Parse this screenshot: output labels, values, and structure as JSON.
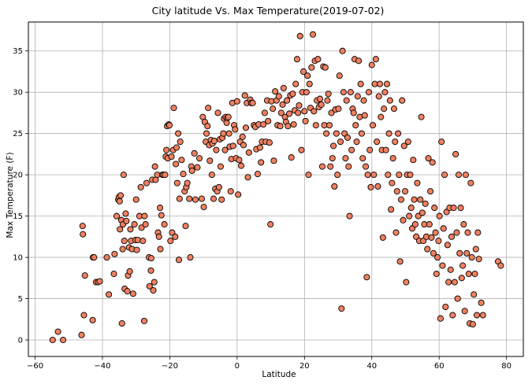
{
  "chart_data": {
    "type": "scatter",
    "title": "City latitude Vs. Max Temperature(2019-07-02)",
    "xlabel": "Latitude",
    "ylabel": "Max Temperature (F)",
    "xlim": [
      -62,
      85
    ],
    "ylim": [
      -2,
      38.5
    ],
    "xticks": [
      -60,
      -40,
      -20,
      0,
      20,
      40,
      60,
      80
    ],
    "yticks": [
      0,
      5,
      10,
      15,
      20,
      25,
      30,
      35
    ],
    "grid": true,
    "marker_face_color": "#f08060",
    "marker_edge_color": "#000000",
    "points": [
      [
        -54.8,
        0.0
      ],
      [
        -53.2,
        1.0
      ],
      [
        -51.7,
        0.0
      ],
      [
        -46.2,
        0.6
      ],
      [
        -45.9,
        13.8
      ],
      [
        -45.8,
        12.8
      ],
      [
        -45.5,
        3.0
      ],
      [
        -45.2,
        7.8
      ],
      [
        -42.9,
        2.4
      ],
      [
        -42.8,
        10.0
      ],
      [
        -42.5,
        10.0
      ],
      [
        -41.9,
        7.0
      ],
      [
        -41.3,
        7.0
      ],
      [
        -40.8,
        7.1
      ],
      [
        -38.7,
        10.0
      ],
      [
        -38.1,
        5.5
      ],
      [
        -36.6,
        8.0
      ],
      [
        -36.4,
        10.4
      ],
      [
        -35.8,
        15.0
      ],
      [
        -35.3,
        17.0
      ],
      [
        -35.1,
        17.3
      ],
      [
        -34.9,
        16.8
      ],
      [
        -34.8,
        13.4
      ],
      [
        -34.6,
        17.5
      ],
      [
        -34.4,
        14.5
      ],
      [
        -34.2,
        2.0
      ],
      [
        -34.0,
        11.0
      ],
      [
        -33.9,
        14.0
      ],
      [
        -33.7,
        20.0
      ],
      [
        -33.5,
        12.0
      ],
      [
        -33.4,
        6.2
      ],
      [
        -33.1,
        15.3
      ],
      [
        -32.9,
        14.4
      ],
      [
        -32.6,
        5.9
      ],
      [
        -32.4,
        7.8
      ],
      [
        -32.1,
        11.2
      ],
      [
        -31.9,
        8.3
      ],
      [
        -31.7,
        13.4
      ],
      [
        -31.5,
        12.0
      ],
      [
        -31.2,
        11.0
      ],
      [
        -30.9,
        5.6
      ],
      [
        -30.5,
        14.0
      ],
      [
        -30.2,
        12.1
      ],
      [
        -30.0,
        17.0
      ],
      [
        -29.8,
        10.9
      ],
      [
        -29.5,
        12.1
      ],
      [
        -29.0,
        15.0
      ],
      [
        -28.6,
        18.5
      ],
      [
        -28.4,
        13.6
      ],
      [
        -28.0,
        12.0
      ],
      [
        -27.6,
        2.3
      ],
      [
        -27.5,
        15.0
      ],
      [
        -27.2,
        14.0
      ],
      [
        -26.9,
        19.0
      ],
      [
        -26.2,
        10.0
      ],
      [
        -26.0,
        6.5
      ],
      [
        -25.6,
        8.4
      ],
      [
        -25.5,
        9.9
      ],
      [
        -25.2,
        19.4
      ],
      [
        -24.9,
        6.0
      ],
      [
        -24.6,
        7.0
      ],
      [
        -24.4,
        21.0
      ],
      [
        -24.2,
        19.4
      ],
      [
        -23.7,
        20.0
      ],
      [
        -23.5,
        13.0
      ],
      [
        -23.2,
        12.5
      ],
      [
        -22.9,
        16.0
      ],
      [
        -22.8,
        11.0
      ],
      [
        -22.5,
        15.1
      ],
      [
        -22.2,
        20.0
      ],
      [
        -21.9,
        20.0
      ],
      [
        -21.6,
        14.0
      ],
      [
        -21.4,
        20.0
      ],
      [
        -21.2,
        22.2
      ],
      [
        -21.0,
        23.0
      ],
      [
        -20.8,
        25.9
      ],
      [
        -20.6,
        22.0
      ],
      [
        -20.3,
        26.1
      ],
      [
        -20.1,
        26.0
      ],
      [
        -19.8,
        12.0
      ],
      [
        -19.5,
        22.2
      ],
      [
        -19.3,
        13.0
      ],
      [
        -19.0,
        23.0
      ],
      [
        -18.8,
        28.1
      ],
      [
        -18.4,
        12.5
      ],
      [
        -18.2,
        21.3
      ],
      [
        -18.0,
        23.3
      ],
      [
        -17.8,
        19.0
      ],
      [
        -17.5,
        25.0
      ],
      [
        -17.3,
        9.7
      ],
      [
        -17.1,
        17.1
      ],
      [
        -16.9,
        24.0
      ],
      [
        -16.5,
        21.8
      ],
      [
        -16.0,
        20.1
      ],
      [
        -15.6,
        18.0
      ],
      [
        -15.3,
        13.8
      ],
      [
        -15.1,
        18.5
      ],
      [
        -14.8,
        19.0
      ],
      [
        -14.2,
        17.1
      ],
      [
        -13.9,
        10.0
      ],
      [
        -13.6,
        21.0
      ],
      [
        -13.4,
        20.5
      ],
      [
        -12.7,
        22.6
      ],
      [
        -12.4,
        17.0
      ],
      [
        -11.8,
        20.9
      ],
      [
        -11.2,
        22.0
      ],
      [
        -10.5,
        17.1
      ],
      [
        -10.2,
        27.0
      ],
      [
        -9.9,
        16.1
      ],
      [
        -9.6,
        26.4
      ],
      [
        -9.3,
        24.0
      ],
      [
        -9.1,
        25.0
      ],
      [
        -8.8,
        25.9
      ],
      [
        -8.6,
        28.1
      ],
      [
        -8.3,
        23.6
      ],
      [
        -8.1,
        21.7
      ],
      [
        -7.8,
        24.2
      ],
      [
        -7.5,
        20.0
      ],
      [
        -7.3,
        23.8
      ],
      [
        -7.0,
        17.1
      ],
      [
        -6.8,
        24.1
      ],
      [
        -6.5,
        18.3
      ],
      [
        -6.2,
        23.0
      ],
      [
        -5.9,
        18.0
      ],
      [
        -5.7,
        27.5
      ],
      [
        -5.4,
        18.5
      ],
      [
        -5.1,
        24.3
      ],
      [
        -4.9,
        21.0
      ],
      [
        -4.6,
        17.0
      ],
      [
        -4.4,
        24.5
      ],
      [
        -4.1,
        25.0
      ],
      [
        -3.9,
        26.8
      ],
      [
        -3.6,
        23.0
      ],
      [
        -3.4,
        27.0
      ],
      [
        -3.1,
        26.3
      ],
      [
        -2.9,
        26.9
      ],
      [
        -2.6,
        27.0
      ],
      [
        -2.4,
        25.0
      ],
      [
        -2.2,
        23.4
      ],
      [
        -1.9,
        18.0
      ],
      [
        -1.7,
        21.9
      ],
      [
        -1.4,
        28.7
      ],
      [
        -1.2,
        23.5
      ],
      [
        -0.9,
        26.0
      ],
      [
        -0.6,
        25.5
      ],
      [
        -0.3,
        22.0
      ],
      [
        0.0,
        28.9
      ],
      [
        0.3,
        17.6
      ],
      [
        0.6,
        21.8
      ],
      [
        0.9,
        24.0
      ],
      [
        1.2,
        21.1
      ],
      [
        1.6,
        24.6
      ],
      [
        1.9,
        23.6
      ],
      [
        2.3,
        29.6
      ],
      [
        2.6,
        25.7
      ],
      [
        2.9,
        28.7
      ],
      [
        3.2,
        19.7
      ],
      [
        3.5,
        22.7
      ],
      [
        3.9,
        29.1
      ],
      [
        4.2,
        28.7
      ],
      [
        4.6,
        28.7
      ],
      [
        5.0,
        26.0
      ],
      [
        5.4,
        25.8
      ],
      [
        5.7,
        23.1
      ],
      [
        6.1,
        20.1
      ],
      [
        6.4,
        26.1
      ],
      [
        6.8,
        23.3
      ],
      [
        7.1,
        21.5
      ],
      [
        7.4,
        24.0
      ],
      [
        7.8,
        26.1
      ],
      [
        8.2,
        27.5
      ],
      [
        8.5,
        24.0
      ],
      [
        8.9,
        29.0
      ],
      [
        9.2,
        26.5
      ],
      [
        9.6,
        23.9
      ],
      [
        9.9,
        14.0
      ],
      [
        10.2,
        28.9
      ],
      [
        10.6,
        28.0
      ],
      [
        10.9,
        21.7
      ],
      [
        11.3,
        30.1
      ],
      [
        11.7,
        29.0
      ],
      [
        12.0,
        26.0
      ],
      [
        12.4,
        29.5
      ],
      [
        12.8,
        25.9
      ],
      [
        13.1,
        27.5
      ],
      [
        13.5,
        28.5
      ],
      [
        13.8,
        30.5
      ],
      [
        14.2,
        27.0
      ],
      [
        14.5,
        26.4
      ],
      [
        14.8,
        29.0
      ],
      [
        15.1,
        25.9
      ],
      [
        15.5,
        27.4
      ],
      [
        15.8,
        29.6
      ],
      [
        16.1,
        22.1
      ],
      [
        16.5,
        29.8
      ],
      [
        16.8,
        26.1
      ],
      [
        17.1,
        27.8
      ],
      [
        17.4,
        31.0
      ],
      [
        17.8,
        34.0
      ],
      [
        18.1,
        27.5
      ],
      [
        18.4,
        28.4
      ],
      [
        18.7,
        36.8
      ],
      [
        19.1,
        23.0
      ],
      [
        19.4,
        30.0
      ],
      [
        19.7,
        32.5
      ],
      [
        20.0,
        27.7
      ],
      [
        20.3,
        26.5
      ],
      [
        20.6,
        30.0
      ],
      [
        20.9,
        32.0
      ],
      [
        21.2,
        20.0
      ],
      [
        21.5,
        31.0
      ],
      [
        21.8,
        28.1
      ],
      [
        22.1,
        33.0
      ],
      [
        22.5,
        37.0
      ],
      [
        22.8,
        27.7
      ],
      [
        23.1,
        33.8
      ],
      [
        23.4,
        26.0
      ],
      [
        23.7,
        29.0
      ],
      [
        24.0,
        34.0
      ],
      [
        24.3,
        28.2
      ],
      [
        24.6,
        29.2
      ],
      [
        25.0,
        28.5
      ],
      [
        25.3,
        21.0
      ],
      [
        25.6,
        33.1
      ],
      [
        25.9,
        26.0
      ],
      [
        26.2,
        33.0
      ],
      [
        26.5,
        25.0
      ],
      [
        26.8,
        29.0
      ],
      [
        27.1,
        29.8
      ],
      [
        27.4,
        26.0
      ],
      [
        27.7,
        21.0
      ],
      [
        28.0,
        27.5
      ],
      [
        28.3,
        22.0
      ],
      [
        28.6,
        23.5
      ],
      [
        28.9,
        18.6
      ],
      [
        29.2,
        27.9
      ],
      [
        29.5,
        25.0
      ],
      [
        29.8,
        20.0
      ],
      [
        30.1,
        28.0
      ],
      [
        30.4,
        32.0
      ],
      [
        30.7,
        24.0
      ],
      [
        31.0,
        3.8
      ],
      [
        31.3,
        35.0
      ],
      [
        31.6,
        30.0
      ],
      [
        31.9,
        25.0
      ],
      [
        32.2,
        22.0
      ],
      [
        32.5,
        29.0
      ],
      [
        32.8,
        24.5
      ],
      [
        33.1,
        21.0
      ],
      [
        33.4,
        15.0
      ],
      [
        33.7,
        30.0
      ],
      [
        34.0,
        23.0
      ],
      [
        34.3,
        28.0
      ],
      [
        34.6,
        27.5
      ],
      [
        34.9,
        34.0
      ],
      [
        35.2,
        26.0
      ],
      [
        35.5,
        24.0
      ],
      [
        35.8,
        29.5
      ],
      [
        36.1,
        33.8
      ],
      [
        36.4,
        27.0
      ],
      [
        36.7,
        31.0
      ],
      [
        37.0,
        25.0
      ],
      [
        37.3,
        22.0
      ],
      [
        37.6,
        29.0
      ],
      [
        37.9,
        27.2
      ],
      [
        38.2,
        21.0
      ],
      [
        38.5,
        7.6
      ],
      [
        38.8,
        20.0
      ],
      [
        39.1,
        30.0
      ],
      [
        39.4,
        23.0
      ],
      [
        39.7,
        18.5
      ],
      [
        40.0,
        33.3
      ],
      [
        40.3,
        26.0
      ],
      [
        40.6,
        20.0
      ],
      [
        40.9,
        31.0
      ],
      [
        41.2,
        34.0
      ],
      [
        41.5,
        24.0
      ],
      [
        41.8,
        18.6
      ],
      [
        42.1,
        29.5
      ],
      [
        42.4,
        31.0
      ],
      [
        42.7,
        27.0
      ],
      [
        43.0,
        23.0
      ],
      [
        43.3,
        12.4
      ],
      [
        43.6,
        28.0
      ],
      [
        43.9,
        30.0
      ],
      [
        44.2,
        23.0
      ],
      [
        44.5,
        31.0
      ],
      [
        44.8,
        20.0
      ],
      [
        45.1,
        25.0
      ],
      [
        45.4,
        29.0
      ],
      [
        45.7,
        15.8
      ],
      [
        46.0,
        19.0
      ],
      [
        46.3,
        22.0
      ],
      [
        46.6,
        28.0
      ],
      [
        46.9,
        24.0
      ],
      [
        47.2,
        13.0
      ],
      [
        47.5,
        18.0
      ],
      [
        47.8,
        25.0
      ],
      [
        48.1,
        20.0
      ],
      [
        48.4,
        9.5
      ],
      [
        48.7,
        17.0
      ],
      [
        49.0,
        29.0
      ],
      [
        49.3,
        14.5
      ],
      [
        49.6,
        23.5
      ],
      [
        49.9,
        18.0
      ],
      [
        50.2,
        7.0
      ],
      [
        50.5,
        20.0
      ],
      [
        50.8,
        24.0
      ],
      [
        51.1,
        15.0
      ],
      [
        51.4,
        20.0
      ],
      [
        51.7,
        16.0
      ],
      [
        52.0,
        13.5
      ],
      [
        52.3,
        21.8
      ],
      [
        52.6,
        17.0
      ],
      [
        52.9,
        14.0
      ],
      [
        53.2,
        12.5
      ],
      [
        53.5,
        19.0
      ],
      [
        53.8,
        15.0
      ],
      [
        54.1,
        12.0
      ],
      [
        54.4,
        17.0
      ],
      [
        54.7,
        27.0
      ],
      [
        55.0,
        15.4
      ],
      [
        55.3,
        12.0
      ],
      [
        55.6,
        14.0
      ],
      [
        55.9,
        16.5
      ],
      [
        56.2,
        12.5
      ],
      [
        56.5,
        11.0
      ],
      [
        56.8,
        22.0
      ],
      [
        57.1,
        14.0
      ],
      [
        57.4,
        18.0
      ],
      [
        57.7,
        12.4
      ],
      [
        58.0,
        21.5
      ],
      [
        58.3,
        10.5
      ],
      [
        58.6,
        16.0
      ],
      [
        58.9,
        13.0
      ],
      [
        59.2,
        8.0
      ],
      [
        59.5,
        10.0
      ],
      [
        59.8,
        12.0
      ],
      [
        60.1,
        15.0
      ],
      [
        60.4,
        2.6
      ],
      [
        60.7,
        24.0
      ],
      [
        61.0,
        9.0
      ],
      [
        61.3,
        13.5
      ],
      [
        61.6,
        20.0
      ],
      [
        61.9,
        4.0
      ],
      [
        62.2,
        15.5
      ],
      [
        62.5,
        11.5
      ],
      [
        62.8,
        7.0
      ],
      [
        63.1,
        16.0
      ],
      [
        63.4,
        8.5
      ],
      [
        63.7,
        12.5
      ],
      [
        64.0,
        3.0
      ],
      [
        64.3,
        16.0
      ],
      [
        64.6,
        7.0
      ],
      [
        64.9,
        22.5
      ],
      [
        65.2,
        13.0
      ],
      [
        65.5,
        5.0
      ],
      [
        65.8,
        20.0
      ],
      [
        66.1,
        10.5
      ],
      [
        66.4,
        16.0
      ],
      [
        66.7,
        7.5
      ],
      [
        67.0,
        9.0
      ],
      [
        67.3,
        14.0
      ],
      [
        67.6,
        3.5
      ],
      [
        67.9,
        20.0
      ],
      [
        68.2,
        10.5
      ],
      [
        68.5,
        13.0
      ],
      [
        68.8,
        8.0
      ],
      [
        69.1,
        2.0
      ],
      [
        69.4,
        19.0
      ],
      [
        69.7,
        10.0
      ],
      [
        70.0,
        1.9
      ],
      [
        70.3,
        5.5
      ],
      [
        70.6,
        8.0
      ],
      [
        70.9,
        11.0
      ],
      [
        71.2,
        3.0
      ],
      [
        71.5,
        13.0
      ],
      [
        71.8,
        9.8
      ],
      [
        72.5,
        4.5
      ],
      [
        73.0,
        3.0
      ],
      [
        77.5,
        9.5
      ],
      [
        78.3,
        9.0
      ]
    ]
  }
}
